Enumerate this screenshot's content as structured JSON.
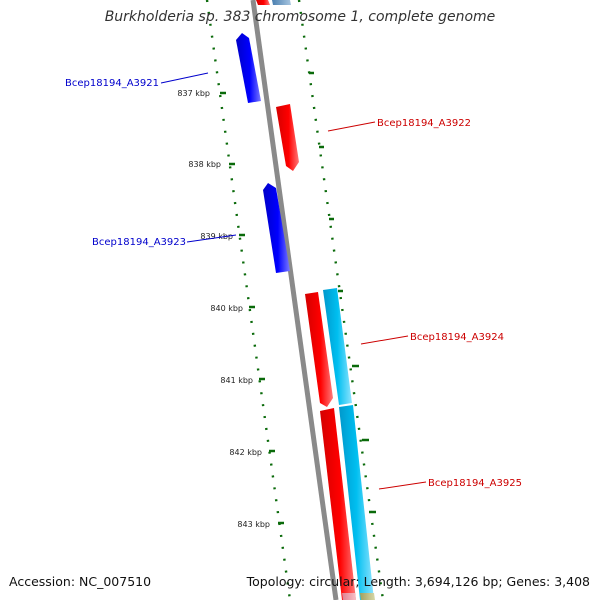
{
  "title": "Burkholderia sp. 383 chromosome 1, complete genome",
  "footer": {
    "accession": "Accession: NC_007510",
    "stats": "Topology: circular; Length: 3,694,126 bp; Genes: 3,408"
  },
  "colors": {
    "forward_strand": "#0000ee",
    "reverse_strand": "#ee0000",
    "cds_feature": "#00bbee",
    "tick_marks": "#0a6a0a",
    "backbone": "#888888"
  },
  "scale_ticks": [
    "837 kbp",
    "838 kbp",
    "839 kbp",
    "840 kbp",
    "841 kbp",
    "842 kbp",
    "843 kbp"
  ],
  "genes": [
    {
      "label": "Bcep18194_A3921",
      "strand": "forward"
    },
    {
      "label": "Bcep18194_A3922",
      "strand": "reverse"
    },
    {
      "label": "Bcep18194_A3923",
      "strand": "forward"
    },
    {
      "label": "Bcep18194_A3924",
      "strand": "reverse"
    },
    {
      "label": "Bcep18194_A3925",
      "strand": "reverse"
    }
  ]
}
